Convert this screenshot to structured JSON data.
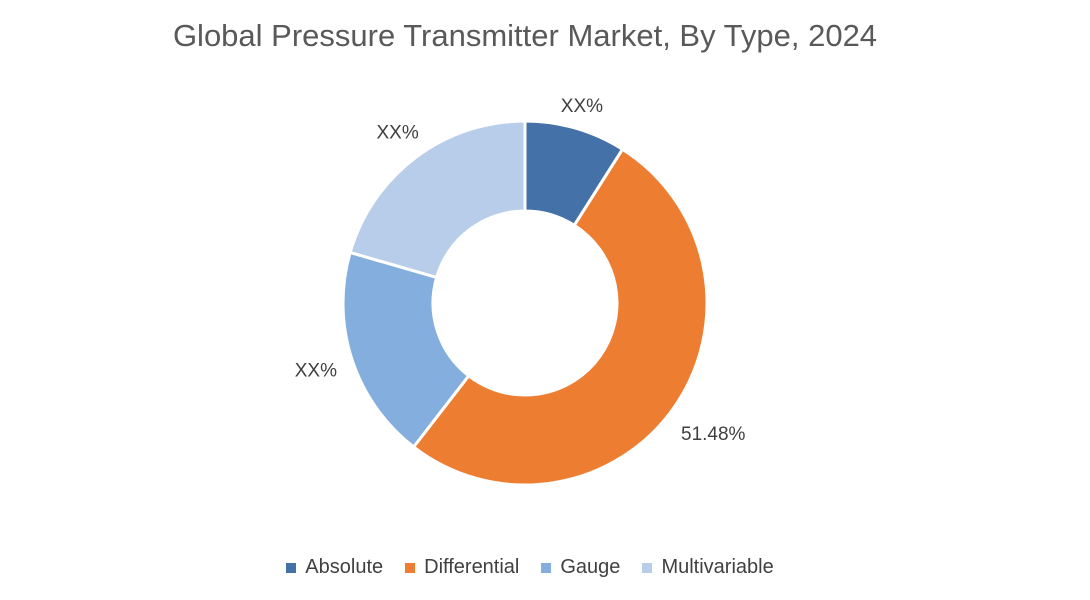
{
  "chart_data": {
    "type": "pie",
    "variant": "donut",
    "title": "Global Pressure Transmitter Market, By Type, 2024",
    "categories": [
      "Absolute",
      "Differential",
      "Gauge",
      "Multivariable"
    ],
    "values": [
      9,
      51.48,
      19,
      20.52
    ],
    "data_labels": [
      "XX%",
      "51.48%",
      "XX%",
      "XX%"
    ],
    "colors": [
      "#4472a8",
      "#ed7d31",
      "#84aedd",
      "#b8cde9"
    ],
    "legend_position": "bottom"
  }
}
